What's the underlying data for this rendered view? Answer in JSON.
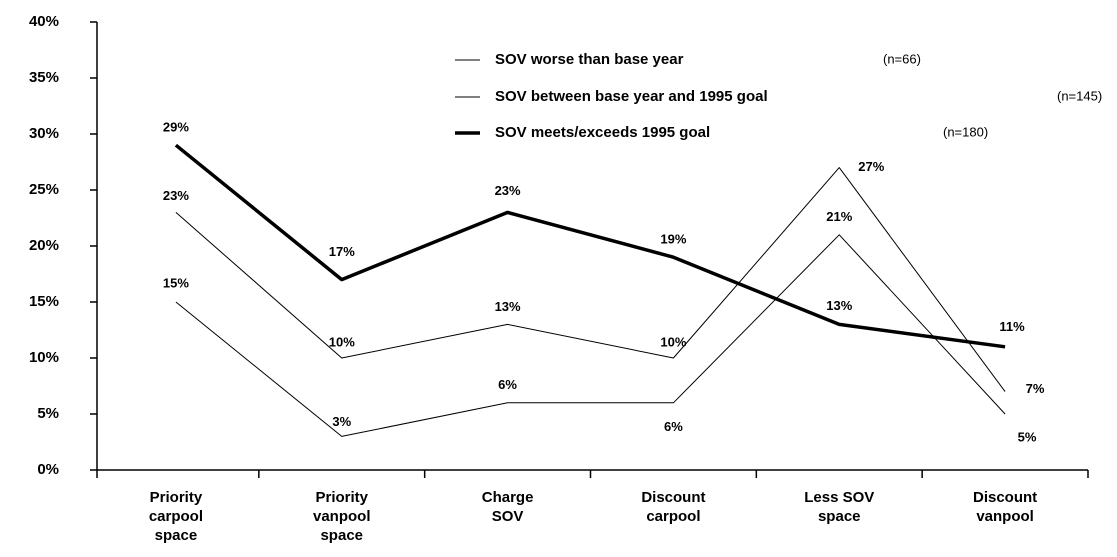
{
  "chart_data": {
    "type": "line",
    "categories": [
      [
        "Priority",
        "carpool",
        "space"
      ],
      [
        "Priority",
        "vanpool",
        "space"
      ],
      [
        "Charge",
        "SOV"
      ],
      [
        "Discount",
        "carpool"
      ],
      [
        "Less SOV",
        "space"
      ],
      [
        "Discount",
        "vanpool"
      ]
    ],
    "series": [
      {
        "name": "SOV worse than base year",
        "n_label": "(n=66)",
        "color": "#000000",
        "line_width": 1,
        "values": [
          15,
          3,
          6,
          6,
          21,
          5
        ],
        "value_labels": [
          "15%",
          "3%",
          "6%",
          "6%",
          "21%",
          "5%"
        ]
      },
      {
        "name": "SOV between base year and 1995 goal",
        "n_label": "(n=145)",
        "color": "#000000",
        "line_width": 1,
        "values": [
          23,
          10,
          13,
          10,
          27,
          7
        ],
        "value_labels": [
          "23%",
          "10%",
          "13%",
          "10%",
          "27%",
          "7%"
        ]
      },
      {
        "name": "SOV meets/exceeds 1995 goal",
        "n_label": "(n=180)",
        "color": "#000000",
        "line_width": 3.5,
        "values": [
          29,
          17,
          23,
          19,
          13,
          11
        ],
        "value_labels": [
          "29%",
          "17%",
          "23%",
          "19%",
          "13%",
          "11%"
        ]
      }
    ],
    "ylim": [
      0,
      40
    ],
    "yticks": [
      {
        "value": 0,
        "label": "0%"
      },
      {
        "value": 5,
        "label": "5%"
      },
      {
        "value": 10,
        "label": "10%"
      },
      {
        "value": 15,
        "label": "15%"
      },
      {
        "value": 20,
        "label": "20%"
      },
      {
        "value": 25,
        "label": "25%"
      },
      {
        "value": 30,
        "label": "30%"
      },
      {
        "value": 35,
        "label": "35%"
      },
      {
        "value": 40,
        "label": "40%"
      }
    ],
    "grid": false
  }
}
